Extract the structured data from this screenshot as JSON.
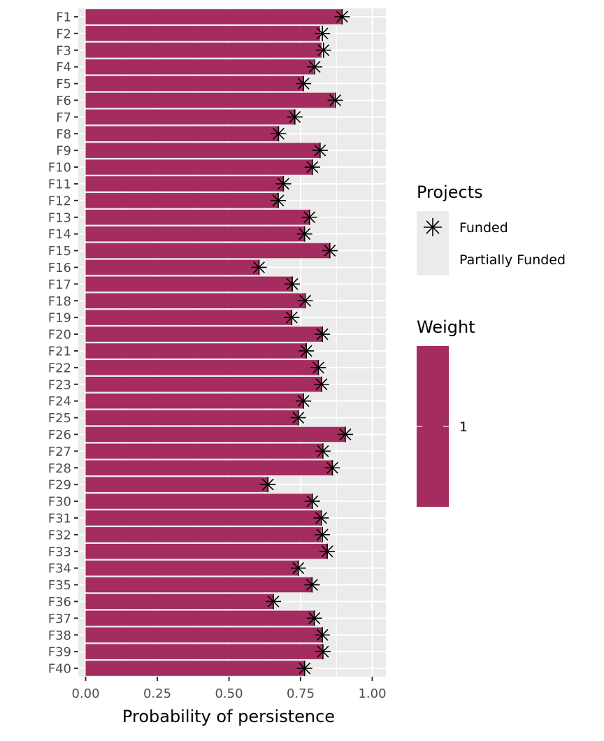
{
  "chart_data": {
    "type": "bar",
    "orientation": "horizontal",
    "categories": [
      "F1",
      "F2",
      "F3",
      "F4",
      "F5",
      "F6",
      "F7",
      "F8",
      "F9",
      "F10",
      "F11",
      "F12",
      "F13",
      "F14",
      "F15",
      "F16",
      "F17",
      "F18",
      "F19",
      "F20",
      "F21",
      "F22",
      "F23",
      "F24",
      "F25",
      "F26",
      "F27",
      "F28",
      "F29",
      "F30",
      "F31",
      "F32",
      "F33",
      "F34",
      "F35",
      "F36",
      "F37",
      "F38",
      "F39",
      "F40"
    ],
    "values": [
      0.895,
      0.818,
      0.823,
      0.796,
      0.76,
      0.868,
      0.728,
      0.673,
      0.816,
      0.79,
      0.689,
      0.673,
      0.78,
      0.764,
      0.852,
      0.606,
      0.721,
      0.764,
      0.718,
      0.826,
      0.77,
      0.81,
      0.822,
      0.758,
      0.741,
      0.907,
      0.826,
      0.86,
      0.637,
      0.79,
      0.82,
      0.822,
      0.842,
      0.741,
      0.79,
      0.656,
      0.798,
      0.826,
      0.826,
      0.764
    ],
    "funded": [
      0.895,
      0.826,
      0.83,
      0.799,
      0.76,
      0.871,
      0.73,
      0.673,
      0.818,
      0.791,
      0.69,
      0.672,
      0.781,
      0.764,
      0.852,
      0.605,
      0.721,
      0.766,
      0.719,
      0.826,
      0.77,
      0.812,
      0.823,
      0.76,
      0.742,
      0.906,
      0.828,
      0.861,
      0.636,
      0.791,
      0.822,
      0.826,
      0.843,
      0.742,
      0.79,
      0.655,
      0.798,
      0.826,
      0.828,
      0.764
    ],
    "title": "",
    "xlabel": "Probability of persistence",
    "ylabel": "",
    "xlim": [
      0,
      1.05
    ],
    "x_ticks": [
      0.0,
      0.25,
      0.5,
      0.75,
      1.0
    ],
    "x_tick_labels": [
      "0.00",
      "0.25",
      "0.50",
      "0.75",
      "1.00"
    ],
    "bar_color": "#A42C5E",
    "panel_background": "#EBEBEB",
    "grid": true,
    "legend": {
      "position": "right",
      "projects_title": "Projects",
      "projects_items": [
        "Funded",
        "Partially Funded"
      ],
      "weight_title": "Weight",
      "weight_label": "1"
    }
  }
}
